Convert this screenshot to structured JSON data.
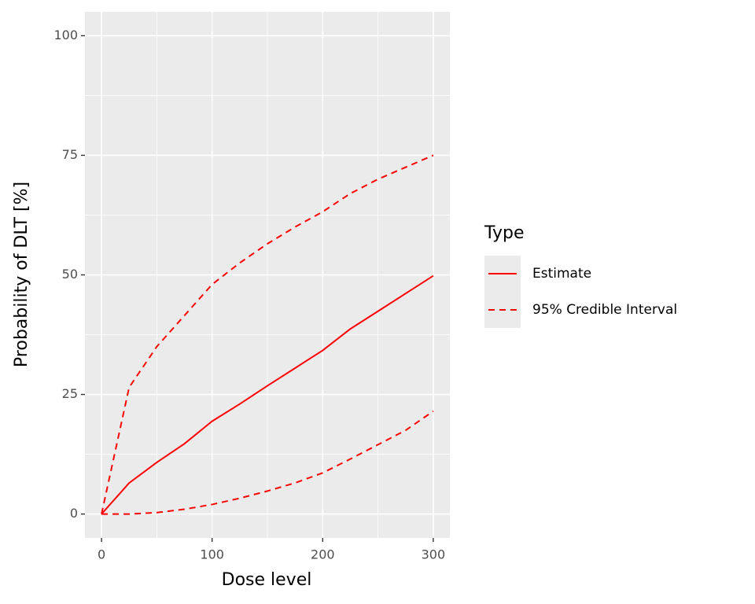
{
  "chart_data": {
    "type": "line",
    "x_label": "Dose level",
    "y_label": "Probability of DLT [%]",
    "x": [
      0,
      25,
      50,
      75,
      100,
      125,
      150,
      175,
      200,
      225,
      250,
      275,
      300
    ],
    "series": [
      {
        "name": "Estimate",
        "color": "#ff0000",
        "linetype": "solid",
        "values": [
          0,
          6.5,
          10.8,
          14.7,
          19.4,
          23,
          26.8,
          30.5,
          34.2,
          38.7,
          42.4,
          46.1,
          49.8
        ]
      },
      {
        "name": "95% Credible Interval",
        "color": "#ff0000",
        "linetype": "dashed",
        "upper": [
          0,
          26.5,
          35,
          41.5,
          48,
          52.5,
          56.5,
          60,
          63.2,
          67,
          70,
          72.5,
          75
        ],
        "lower": [
          0,
          0,
          0.3,
          1,
          2,
          3.3,
          4.8,
          6.5,
          8.6,
          11.5,
          14.5,
          17.5,
          21.5
        ]
      }
    ],
    "legend_title": "Type",
    "legend_position": "right",
    "xlim": [
      -15,
      315
    ],
    "xticks": [
      0,
      100,
      200,
      300
    ],
    "xminor": [
      50,
      150,
      250
    ],
    "ylim": [
      -5,
      105
    ],
    "yticks": [
      0,
      25,
      50,
      75,
      100
    ],
    "yminor": [
      12.5,
      37.5,
      62.5,
      87.5
    ],
    "grid": true
  }
}
